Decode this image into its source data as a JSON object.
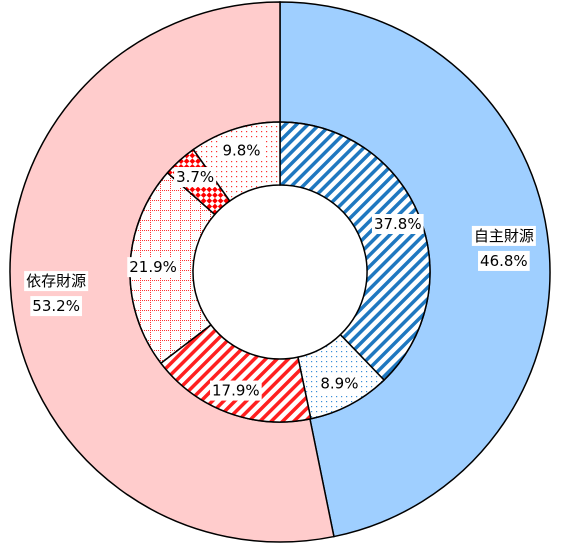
{
  "chart_data": {
    "type": "donut",
    "rings": [
      {
        "categories": [
          "自主財源",
          "依存財源"
        ],
        "values": [
          46.8,
          53.2
        ],
        "value_labels": [
          "46.8%",
          "53.2%"
        ],
        "colors": [
          "#9fcfff",
          "#ffcccc"
        ]
      },
      {
        "values": [
          37.8,
          8.9,
          17.9,
          21.9,
          3.7,
          9.8
        ],
        "value_labels": [
          "37.8%",
          "8.9%",
          "17.9%",
          "21.9%",
          "3.7%",
          "9.8%"
        ],
        "colors": [
          "#1f78c0",
          "#3a8fd8",
          "#ff2020",
          "#ff3030",
          "#ff0000",
          "#ff3030"
        ],
        "patterns": [
          "stripes",
          "dots",
          "stripes",
          "grid",
          "checker",
          "dots"
        ]
      }
    ]
  }
}
